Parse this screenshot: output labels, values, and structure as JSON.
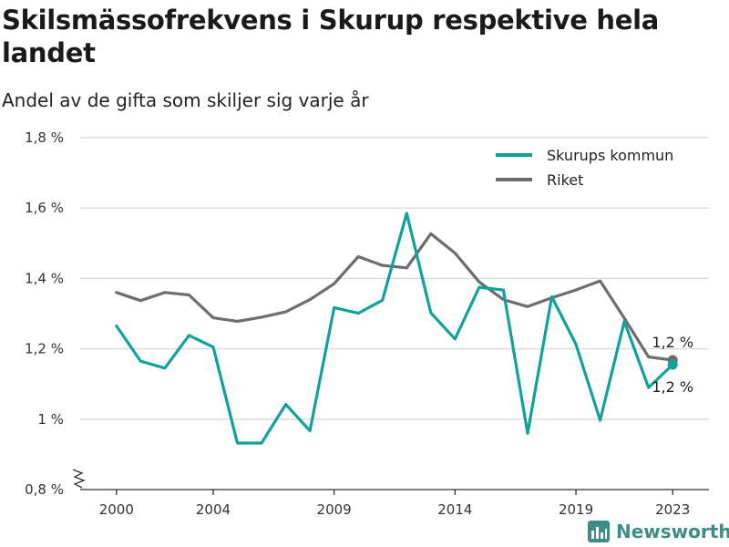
{
  "title": "Skilsmässofrekvens i Skurup respektive hela landet",
  "subtitle": "Andel av de gifta som skiljer sig varje år",
  "brand": "Newsworthy",
  "colors": {
    "skurup": "#12a29a",
    "riket": "#6e6c70",
    "grid": "#d9d9d9",
    "axis": "#333333"
  },
  "chart_data": {
    "type": "line",
    "x": [
      2000,
      2001,
      2002,
      2003,
      2004,
      2005,
      2006,
      2007,
      2008,
      2009,
      2010,
      2011,
      2012,
      2013,
      2014,
      2015,
      2016,
      2017,
      2018,
      2019,
      2020,
      2021,
      2022,
      2023
    ],
    "series": [
      {
        "name": "Skurups kommun",
        "color": "#12a29a",
        "values": [
          1.265,
          1.165,
          1.145,
          1.238,
          1.205,
          0.932,
          0.932,
          1.042,
          0.967,
          1.317,
          1.301,
          1.338,
          1.585,
          1.302,
          1.228,
          1.375,
          1.367,
          0.96,
          1.348,
          1.213,
          0.997,
          1.278,
          1.09,
          1.155
        ],
        "end_label": "1,2 %"
      },
      {
        "name": "Riket",
        "color": "#6e6c70",
        "values": [
          1.36,
          1.337,
          1.36,
          1.353,
          1.288,
          1.278,
          1.29,
          1.305,
          1.34,
          1.385,
          1.462,
          1.437,
          1.43,
          1.527,
          1.472,
          1.39,
          1.34,
          1.32,
          1.345,
          1.367,
          1.393,
          1.287,
          1.177,
          1.168
        ],
        "end_label": "1,2 %"
      }
    ],
    "ylim": [
      0.8,
      1.8
    ],
    "y_ticks": [
      0.8,
      1.0,
      1.2,
      1.4,
      1.6,
      1.8
    ],
    "y_tick_labels": [
      "0,8 %",
      "1 %",
      "1,2 %",
      "1,4 %",
      "1,6 %",
      "1,8 %"
    ],
    "x_ticks": [
      2000,
      2004,
      2009,
      2014,
      2019,
      2023
    ],
    "x_tick_labels": [
      "2000",
      "2004",
      "2009",
      "2014",
      "2019",
      "2023"
    ],
    "grid": true,
    "legend_position": "top-right",
    "axis_break": true
  }
}
